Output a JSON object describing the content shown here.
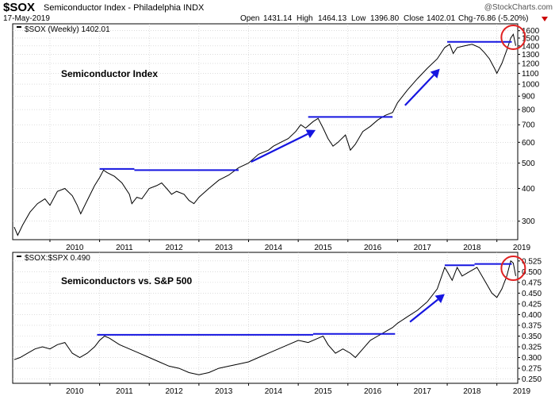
{
  "header": {
    "ticker": "$SOX",
    "name": "Semiconductor Index - Philadelphia INDX",
    "date": "17-May-2019",
    "brand": "@StockCharts.com",
    "quote": {
      "open_label": "Open",
      "open": "1431.14",
      "high_label": "High",
      "high": "1464.13",
      "low_label": "Low",
      "low": "1396.80",
      "close_label": "Close",
      "close": "1402.01",
      "chg_label": "Chg",
      "chg": "-76.86 (-5.20%)"
    },
    "down_color": "#cc0000"
  },
  "chart_data": [
    {
      "type": "line",
      "legend": "$SOX (Weekly) 1402.01",
      "annotation": "Semiconductor Index",
      "scale": "log",
      "ylim": [
        255,
        1700
      ],
      "xlim": [
        2009.25,
        2019.42
      ],
      "y_ticks": [
        300,
        400,
        500,
        600,
        700,
        800,
        900,
        1000,
        1100,
        1200,
        1300,
        1400,
        1500,
        1600
      ],
      "x_ticks": [
        "2010",
        "2011",
        "2012",
        "2013",
        "2014",
        "2015",
        "2016",
        "2017",
        "2018",
        "2019"
      ],
      "grid": true,
      "line_color": "#000000",
      "series": [
        {
          "x": [
            2009.28,
            2009.35,
            2009.45,
            2009.6,
            2009.75,
            2009.9,
            2010.0,
            2010.15,
            2010.3,
            2010.45,
            2010.55,
            2010.62,
            2010.75,
            2010.9,
            2011.0,
            2011.08,
            2011.15,
            2011.3,
            2011.45,
            2011.6,
            2011.65,
            2011.75,
            2011.85,
            2012.0,
            2012.15,
            2012.25,
            2012.35,
            2012.45,
            2012.55,
            2012.7,
            2012.8,
            2012.9,
            2013.0,
            2013.2,
            2013.4,
            2013.6,
            2013.8,
            2014.0,
            2014.2,
            2014.4,
            2014.5,
            2014.65,
            2014.8,
            2014.95,
            2015.05,
            2015.15,
            2015.3,
            2015.4,
            2015.5,
            2015.6,
            2015.7,
            2015.8,
            2015.95,
            2016.05,
            2016.15,
            2016.3,
            2016.45,
            2016.6,
            2016.75,
            2016.9,
            2017.0,
            2017.2,
            2017.4,
            2017.6,
            2017.8,
            2017.95,
            2018.05,
            2018.12,
            2018.2,
            2018.35,
            2018.5,
            2018.65,
            2018.75,
            2018.85,
            2018.95,
            2019.0,
            2019.1,
            2019.2,
            2019.28,
            2019.33,
            2019.38
          ],
          "y": [
            285,
            265,
            290,
            325,
            350,
            365,
            345,
            390,
            400,
            375,
            345,
            320,
            360,
            410,
            440,
            470,
            460,
            445,
            420,
            380,
            350,
            370,
            365,
            400,
            410,
            420,
            400,
            380,
            390,
            380,
            360,
            350,
            370,
            400,
            430,
            450,
            480,
            500,
            540,
            560,
            580,
            600,
            620,
            660,
            700,
            680,
            720,
            740,
            680,
            620,
            580,
            600,
            640,
            560,
            590,
            660,
            690,
            730,
            760,
            780,
            850,
            950,
            1050,
            1150,
            1250,
            1380,
            1420,
            1310,
            1380,
            1400,
            1420,
            1380,
            1320,
            1250,
            1150,
            1100,
            1200,
            1350,
            1500,
            1550,
            1402
          ]
        }
      ],
      "markup": {
        "hlines": [
          {
            "x": [
              2011.0,
              2011.7
            ],
            "y": 475
          },
          {
            "x": [
              2011.7,
              2013.8
            ],
            "y": 470
          },
          {
            "x": [
              2015.2,
              2016.9
            ],
            "y": 750
          },
          {
            "x": [
              2018.0,
              2019.3
            ],
            "y": 1450
          }
        ],
        "arrows": [
          {
            "from": [
              2014.05,
              505
            ],
            "to": [
              2015.35,
              668
            ]
          },
          {
            "from": [
              2017.15,
              830
            ],
            "to": [
              2017.85,
              1145
            ]
          }
        ],
        "circle": {
          "x": 2019.33,
          "y": 1510
        },
        "color": "#1515e0",
        "circle_color": "#e02020"
      }
    },
    {
      "type": "line",
      "legend": "$SOX:$SPX 0.490",
      "annotation": "Semiconductors vs. S&P 500",
      "scale": "linear",
      "ylim": [
        0.24,
        0.545
      ],
      "xlim": [
        2009.25,
        2019.42
      ],
      "y_ticks": [
        0.25,
        0.275,
        0.3,
        0.325,
        0.35,
        0.375,
        0.4,
        0.425,
        0.45,
        0.475,
        0.5,
        0.525
      ],
      "y_tick_labels": [
        "0.250",
        "0.275",
        "0.300",
        "0.325",
        "0.350",
        "0.375",
        "0.400",
        "0.425",
        "0.450",
        "0.475",
        "0.500",
        "0.525"
      ],
      "x_ticks": [
        "2010",
        "2011",
        "2012",
        "2013",
        "2014",
        "2015",
        "2016",
        "2017",
        "2018",
        "2019"
      ],
      "grid": true,
      "line_color": "#000000",
      "series": [
        {
          "x": [
            2009.28,
            2009.4,
            2009.55,
            2009.7,
            2009.85,
            2010.0,
            2010.15,
            2010.3,
            2010.45,
            2010.6,
            2010.75,
            2010.9,
            2011.0,
            2011.1,
            2011.2,
            2011.4,
            2011.6,
            2011.8,
            2012.0,
            2012.2,
            2012.4,
            2012.6,
            2012.8,
            2013.0,
            2013.2,
            2013.4,
            2013.6,
            2013.8,
            2014.0,
            2014.2,
            2014.4,
            2014.6,
            2014.8,
            2015.0,
            2015.2,
            2015.4,
            2015.5,
            2015.6,
            2015.75,
            2015.9,
            2016.05,
            2016.15,
            2016.3,
            2016.45,
            2016.6,
            2016.75,
            2016.9,
            2017.0,
            2017.2,
            2017.4,
            2017.6,
            2017.8,
            2017.95,
            2018.0,
            2018.1,
            2018.2,
            2018.3,
            2018.45,
            2018.6,
            2018.7,
            2018.8,
            2018.9,
            2019.0,
            2019.1,
            2019.2,
            2019.28,
            2019.33,
            2019.38
          ],
          "y": [
            0.295,
            0.3,
            0.31,
            0.32,
            0.325,
            0.32,
            0.33,
            0.335,
            0.31,
            0.3,
            0.31,
            0.325,
            0.34,
            0.35,
            0.345,
            0.33,
            0.32,
            0.31,
            0.3,
            0.29,
            0.28,
            0.275,
            0.265,
            0.26,
            0.265,
            0.275,
            0.28,
            0.285,
            0.29,
            0.3,
            0.31,
            0.32,
            0.33,
            0.34,
            0.335,
            0.345,
            0.35,
            0.33,
            0.31,
            0.32,
            0.31,
            0.3,
            0.32,
            0.34,
            0.35,
            0.36,
            0.37,
            0.38,
            0.395,
            0.41,
            0.43,
            0.46,
            0.51,
            0.5,
            0.48,
            0.51,
            0.49,
            0.5,
            0.51,
            0.49,
            0.47,
            0.45,
            0.44,
            0.46,
            0.49,
            0.525,
            0.52,
            0.49
          ]
        }
      ],
      "markup": {
        "hlines": [
          {
            "x": [
              2010.95,
              2015.3
            ],
            "y": 0.353
          },
          {
            "x": [
              2015.3,
              2016.95
            ],
            "y": 0.355
          },
          {
            "x": [
              2017.95,
              2018.55
            ],
            "y": 0.515
          },
          {
            "x": [
              2018.55,
              2019.3
            ],
            "y": 0.518
          }
        ],
        "arrows": [
          {
            "from": [
              2017.25,
              0.383
            ],
            "to": [
              2017.95,
              0.448
            ]
          }
        ],
        "circle": {
          "x": 2019.33,
          "y": 0.508
        },
        "color": "#1515e0",
        "circle_color": "#e02020"
      }
    }
  ]
}
